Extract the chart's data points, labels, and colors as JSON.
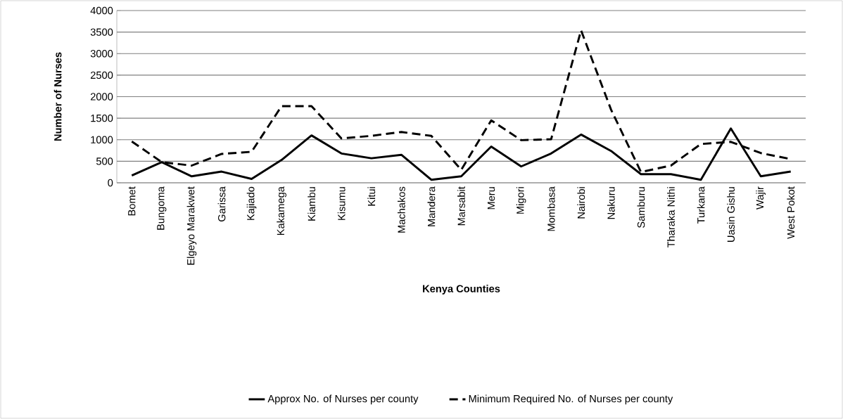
{
  "chart_data": {
    "type": "line",
    "xlabel": "Kenya Counties",
    "ylabel": "Number of Nurses",
    "categories": [
      "Bomet",
      "Bungoma",
      "Elgeyo Marakwet",
      "Garissa",
      "Kajiado",
      "Kakamega",
      "Kiambu",
      "Kisumu",
      "Kitui",
      "Machakos",
      "Mandera",
      "Marsabit",
      "Meru",
      "Migori",
      "Mombasa",
      "Nairobi",
      "Nakuru",
      "Samburu",
      "Tharaka Nithi",
      "Turkana",
      "Uasin Gishu",
      "Wajir",
      "West Pokot"
    ],
    "series": [
      {
        "name": "Approx No. of Nurses per county",
        "color": "#000000",
        "line_style": "solid",
        "values": [
          170,
          480,
          150,
          260,
          90,
          530,
          1100,
          680,
          570,
          650,
          70,
          150,
          840,
          380,
          680,
          1120,
          740,
          200,
          200,
          70,
          1260,
          150,
          260
        ]
      },
      {
        "name": "Minimum Required No. of Nurses per county",
        "color": "#000000",
        "line_style": "dashed",
        "values": [
          960,
          480,
          400,
          670,
          720,
          1780,
          1780,
          1030,
          1090,
          1180,
          1090,
          300,
          1450,
          990,
          1010,
          3540,
          1700,
          250,
          400,
          900,
          950,
          690,
          550
        ]
      }
    ],
    "ylim": [
      0,
      4000
    ],
    "yticks": [
      0,
      500,
      1000,
      1500,
      2000,
      2500,
      3000,
      3500,
      4000
    ],
    "grid": "y",
    "legend": "bottom",
    "marker": "none"
  }
}
